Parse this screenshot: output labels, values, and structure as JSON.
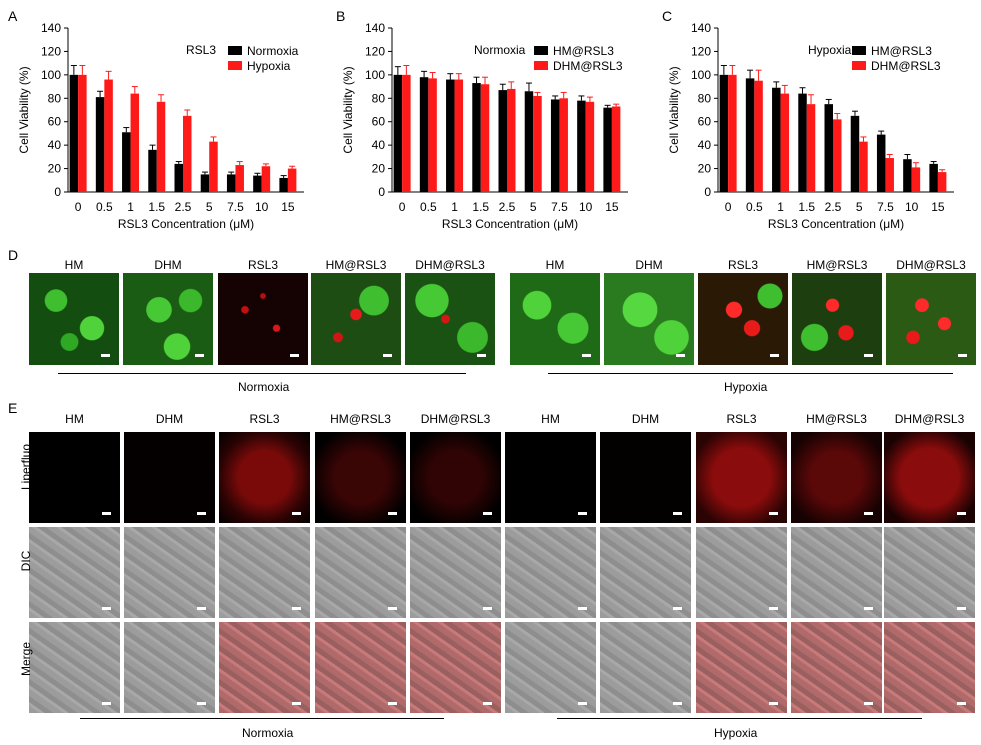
{
  "panels": {
    "A": "A",
    "B": "B",
    "C": "C",
    "D": "D",
    "E": "E"
  },
  "charts_text": {
    "ylabel": "Cell Viability (%)",
    "xlabel": "RSL3 Concentration (μM)"
  },
  "chart_data": [
    {
      "type": "bar",
      "panel": "A",
      "legend_title": "RSL3",
      "categories": [
        "0",
        "0.5",
        "1",
        "1.5",
        "2.5",
        "5",
        "7.5",
        "10",
        "15"
      ],
      "ylim": [
        0,
        140
      ],
      "yticks": [
        0,
        20,
        40,
        60,
        80,
        100,
        120,
        140
      ],
      "xlabel": "RSL3 Concentration (μM)",
      "ylabel": "Cell Viability (%)",
      "legend_position": "top-right",
      "series": [
        {
          "name": "Normoxia",
          "color": "#000000",
          "values": [
            100,
            81,
            51,
            36,
            24,
            15,
            15,
            14,
            12
          ],
          "errors": [
            8,
            5,
            4,
            4,
            2,
            2,
            2,
            2,
            2
          ]
        },
        {
          "name": "Hypoxia",
          "color": "#ff1a1a",
          "values": [
            100,
            96,
            84,
            77,
            65,
            43,
            23,
            22,
            20
          ],
          "errors": [
            8,
            7,
            6,
            6,
            5,
            4,
            3,
            2,
            2
          ]
        }
      ]
    },
    {
      "type": "bar",
      "panel": "B",
      "legend_title": "Normoxia",
      "categories": [
        "0",
        "0.5",
        "1",
        "1.5",
        "2.5",
        "5",
        "7.5",
        "10",
        "15"
      ],
      "ylim": [
        0,
        140
      ],
      "yticks": [
        0,
        20,
        40,
        60,
        80,
        100,
        120,
        140
      ],
      "xlabel": "RSL3 Concentration (μM)",
      "ylabel": "Cell Viability (%)",
      "legend_position": "top-right",
      "series": [
        {
          "name": "HM@RSL3",
          "color": "#000000",
          "values": [
            100,
            98,
            96,
            93,
            87,
            86,
            79,
            78,
            72
          ],
          "errors": [
            7,
            5,
            5,
            5,
            5,
            7,
            3,
            4,
            2
          ]
        },
        {
          "name": "DHM@RSL3",
          "color": "#ff1a1a",
          "values": [
            100,
            97,
            96,
            92,
            88,
            82,
            80,
            77,
            73
          ],
          "errors": [
            8,
            5,
            5,
            6,
            6,
            3,
            5,
            4,
            2
          ]
        }
      ]
    },
    {
      "type": "bar",
      "panel": "C",
      "legend_title": "Hypoxia",
      "categories": [
        "0",
        "0.5",
        "1",
        "1.5",
        "2.5",
        "5",
        "7.5",
        "10",
        "15"
      ],
      "ylim": [
        0,
        140
      ],
      "yticks": [
        0,
        20,
        40,
        60,
        80,
        100,
        120,
        140
      ],
      "xlabel": "RSL3 Concentration (μM)",
      "ylabel": "Cell Viability (%)",
      "legend_position": "top-right",
      "series": [
        {
          "name": "HM@RSL3",
          "color": "#000000",
          "values": [
            100,
            97,
            89,
            84,
            75,
            65,
            49,
            28,
            24
          ],
          "errors": [
            8,
            7,
            5,
            5,
            4,
            4,
            3,
            4,
            2
          ]
        },
        {
          "name": "DHM@RSL3",
          "color": "#ff1a1a",
          "values": [
            100,
            95,
            84,
            75,
            62,
            43,
            29,
            21,
            17
          ],
          "errors": [
            8,
            9,
            7,
            8,
            5,
            4,
            3,
            4,
            2
          ]
        }
      ]
    }
  ],
  "panelD": {
    "labels": [
      "HM",
      "DHM",
      "RSL3",
      "HM@RSL3",
      "DHM@RSL3",
      "HM",
      "DHM",
      "RSL3",
      "HM@RSL3",
      "DHM@RSL3"
    ],
    "groups": [
      "Normoxia",
      "Hypoxia"
    ]
  },
  "panelE": {
    "labels": [
      "HM",
      "DHM",
      "RSL3",
      "HM@RSL3",
      "DHM@RSL3",
      "HM",
      "DHM",
      "RSL3",
      "HM@RSL3",
      "DHM@RSL3"
    ],
    "rows": [
      "Liperfluo",
      "DIC",
      "Merge"
    ],
    "groups": [
      "Normoxia",
      "Hypoxia"
    ]
  }
}
